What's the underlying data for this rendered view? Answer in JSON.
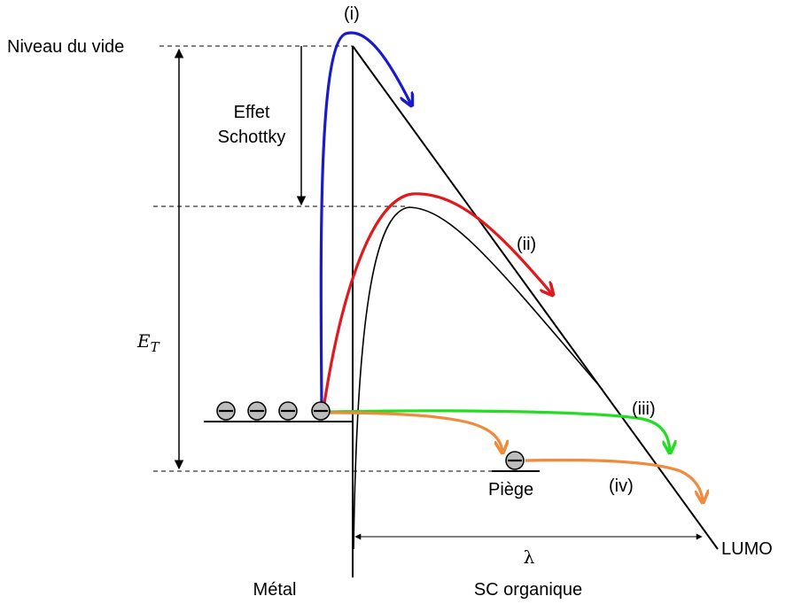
{
  "labels": {
    "vacuum_level": "Niveau du vide",
    "schottky_line1": "Effet",
    "schottky_line2": "Schottky",
    "et_main": "E",
    "et_sub": "T",
    "metal": "Métal",
    "organic_sc": "SC organique",
    "lambda": "λ",
    "lumo": "LUMO",
    "trap": "Piège"
  },
  "mechanisms": {
    "i": {
      "label": "(i)",
      "color": "#1a1acc"
    },
    "ii": {
      "label": "(ii)",
      "color": "#e0191e"
    },
    "iii": {
      "label": "(iii)",
      "color": "#22dd22"
    },
    "iv": {
      "label": "(iv)",
      "color": "#f08a3c"
    }
  },
  "colors": {
    "lines": "#000000",
    "electron_fill": "#bdbdbd"
  }
}
